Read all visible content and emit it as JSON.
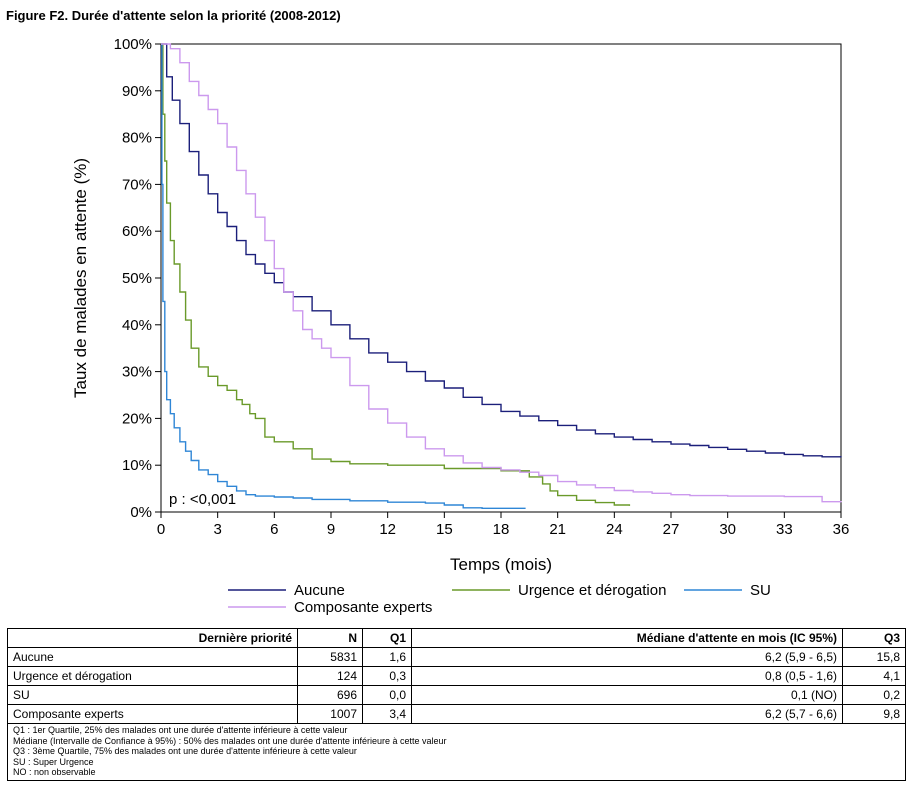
{
  "figure_title": "Figure F2. Durée d'attente selon la priorité (2008-2012)",
  "chart_data": {
    "type": "line",
    "title": "",
    "xlabel": "Temps (mois)",
    "ylabel": "Taux de malades en attente (%)",
    "xlim": [
      0,
      36
    ],
    "ylim": [
      0,
      100
    ],
    "x_ticks": [
      0,
      3,
      6,
      9,
      12,
      15,
      18,
      21,
      24,
      27,
      30,
      33,
      36
    ],
    "y_ticks": [
      0,
      10,
      20,
      30,
      40,
      50,
      60,
      70,
      80,
      90,
      100
    ],
    "y_tick_labels": [
      "0%",
      "10%",
      "20%",
      "30%",
      "40%",
      "50%",
      "60%",
      "70%",
      "80%",
      "90%",
      "100%"
    ],
    "grid": false,
    "legend_position": "bottom",
    "annotation": "p : <0,001",
    "colors": {
      "Aucune": "#1b1f7a",
      "Urgence et dérogation": "#6a9a2a",
      "SU": "#2f86d6",
      "Composante experts": "#cc99ee"
    },
    "series": [
      {
        "name": "Aucune",
        "x": [
          0,
          0.3,
          0.6,
          1,
          1.5,
          2,
          2.5,
          3,
          3.5,
          4,
          4.5,
          5,
          5.5,
          6,
          6.5,
          7,
          8,
          9,
          10,
          11,
          12,
          13,
          14,
          15,
          16,
          17,
          18,
          19,
          20,
          21,
          22,
          23,
          24,
          25,
          26,
          27,
          28,
          29,
          30,
          31,
          32,
          33,
          34,
          35,
          36
        ],
        "y": [
          100,
          93,
          88,
          83,
          77,
          72,
          68,
          64,
          61,
          58,
          55,
          53,
          51,
          49,
          47,
          46,
          43,
          40,
          37,
          34,
          32,
          30,
          28,
          26.5,
          24.5,
          23,
          21.5,
          20.5,
          19.5,
          18.5,
          17.5,
          16.7,
          16,
          15.5,
          15,
          14.5,
          14.2,
          13.8,
          13.4,
          13,
          12.6,
          12.3,
          12,
          11.8,
          11.7
        ]
      },
      {
        "name": "Urgence et dérogation",
        "x": [
          0,
          0.1,
          0.2,
          0.3,
          0.5,
          0.7,
          1,
          1.3,
          1.6,
          2,
          2.5,
          3,
          3.5,
          4,
          4.3,
          4.7,
          5,
          5.5,
          6,
          7,
          8,
          9,
          10,
          12,
          15,
          18,
          19.5,
          20.2,
          20.6,
          21,
          22,
          23,
          24,
          24.8
        ],
        "y": [
          100,
          85,
          75,
          66,
          58,
          53,
          47,
          41,
          35,
          31,
          29,
          27,
          26,
          24,
          23,
          21,
          20,
          16,
          15,
          13.5,
          11.3,
          10.8,
          10.3,
          10,
          9.3,
          8.8,
          7.5,
          6,
          4.5,
          3.5,
          2.5,
          2,
          1.5,
          1.3
        ]
      },
      {
        "name": "SU",
        "x": [
          0,
          0.05,
          0.1,
          0.2,
          0.3,
          0.5,
          0.7,
          1,
          1.3,
          1.6,
          2,
          2.5,
          3,
          3.5,
          4,
          4.5,
          5,
          6,
          7,
          8,
          10,
          12,
          14,
          15,
          16,
          17,
          18,
          19.3
        ],
        "y": [
          100,
          70,
          45,
          30,
          24,
          21,
          18,
          15,
          13,
          11,
          9,
          8,
          6.5,
          5.5,
          4.5,
          3.7,
          3.4,
          3.2,
          3,
          2.7,
          2.4,
          2.1,
          1.9,
          1.5,
          0.9,
          0.8,
          0.8,
          0.8
        ]
      },
      {
        "name": "Composante experts",
        "x": [
          0,
          0.5,
          1,
          1.5,
          2,
          2.5,
          3,
          3.5,
          4,
          4.5,
          5,
          5.5,
          6,
          6.5,
          7,
          7.5,
          8,
          8.5,
          9,
          10,
          11,
          12,
          13,
          14,
          15,
          16,
          17,
          18,
          19,
          20,
          21,
          22,
          23,
          24,
          25,
          26,
          27,
          28,
          30,
          33,
          35,
          36
        ],
        "y": [
          100,
          99,
          96,
          92,
          89,
          86,
          83,
          78,
          73,
          68,
          63,
          58,
          52,
          47,
          43,
          39,
          37,
          35,
          33,
          27,
          22,
          19,
          16,
          13.5,
          12,
          10.5,
          9.5,
          9,
          8.5,
          7.8,
          6.5,
          5.8,
          5.2,
          4.6,
          4.3,
          4,
          3.7,
          3.5,
          3.4,
          3.3,
          2.2,
          2.1
        ]
      }
    ]
  },
  "table": {
    "headers": [
      "Dernière priorité",
      "N",
      "Q1",
      "Médiane d'attente en mois (IC 95%)",
      "Q3"
    ],
    "rows": [
      [
        "Aucune",
        "5831",
        "1,6",
        "6,2 (5,9 - 6,5)",
        "15,8"
      ],
      [
        "Urgence et dérogation",
        "124",
        "0,3",
        "0,8 (0,5 - 1,6)",
        "4,1"
      ],
      [
        "SU",
        "696",
        "0,0",
        "0,1 (NO)",
        "0,2"
      ],
      [
        "Composante experts",
        "1007",
        "3,4",
        "6,2 (5,7 - 6,6)",
        "9,8"
      ]
    ],
    "notes": [
      "Q1 : 1er Quartile, 25% des malades ont une durée d'attente inférieure à cette valeur",
      "Médiane (Intervalle de Confiance à 95%) : 50% des malades ont une durée d'attente inférieure à cette valeur",
      "Q3 : 3ème Quartile, 75% des malades ont une durée d'attente inférieure à cette valeur",
      "SU : Super Urgence",
      "NO : non observable"
    ]
  }
}
